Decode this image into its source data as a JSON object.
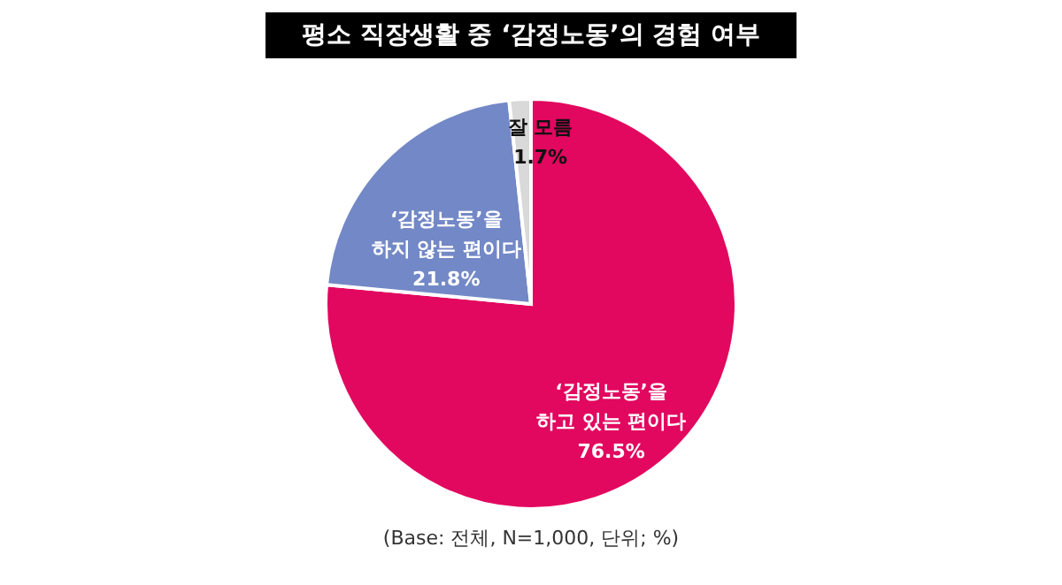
{
  "chart_data": {
    "type": "pie",
    "title": "평소 직장생활 중 ‘감정노동’의 경험 여부",
    "categories": [
      "‘감정노동’을\n하고 있는 편이다",
      "‘감정노동’을\n하지 않는 편이다",
      "잘 모름"
    ],
    "values": [
      76.5,
      21.8,
      1.7
    ],
    "colors": [
      "#e2075f",
      "#7388c6",
      "#d9d9d9"
    ],
    "value_labels": [
      "76.5%",
      "21.8%",
      "1.7%"
    ],
    "annotations": [
      "(Base: 전체, N=1,000, 단위; %)"
    ]
  }
}
